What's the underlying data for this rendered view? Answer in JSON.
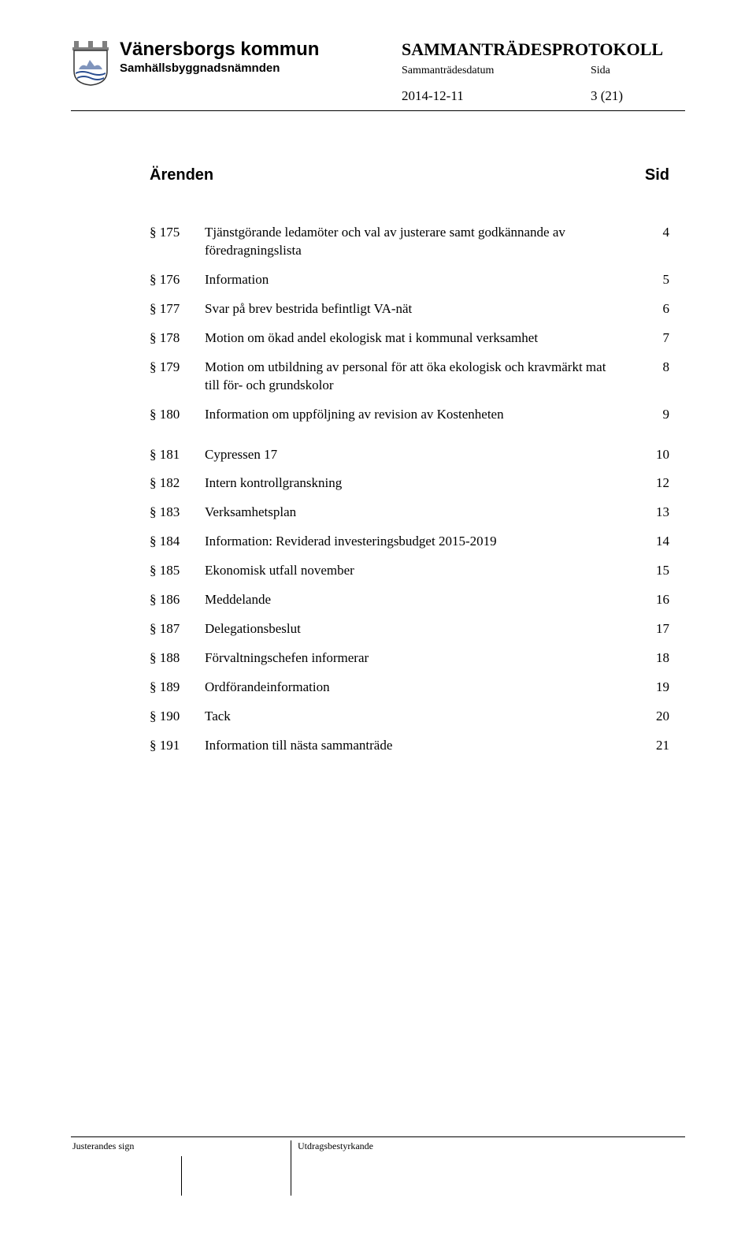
{
  "header": {
    "org_name": "Vänersborgs kommun",
    "committee": "Samhällsbyggnadsnämnden",
    "protocol_title": "SAMMANTRÄDESPROTOKOLL",
    "meta_date_label": "Sammanträdesdatum",
    "meta_side_label": "Sida",
    "date_value": "2014-12-11",
    "page_value": "3 (21)"
  },
  "toc": {
    "title": "Ärenden",
    "page_col": "Sid",
    "items": [
      {
        "num": "§ 175",
        "desc": "Tjänstgörande ledamöter och val av justerare samt godkännande av föredragningslista",
        "page": "4"
      },
      {
        "num": "§ 176",
        "desc": "Information",
        "page": "5"
      },
      {
        "num": "§ 177",
        "desc": "Svar på brev bestrida befintligt VA-nät",
        "page": "6"
      },
      {
        "num": "§ 178",
        "desc": "Motion om ökad andel ekologisk mat i kommunal verksamhet",
        "page": "7"
      },
      {
        "num": "§ 179",
        "desc": "Motion om utbildning av personal för att öka ekologisk och kravmärkt mat till för- och grundskolor",
        "page": "8"
      },
      {
        "num": "§ 180",
        "desc": "Information om uppföljning av revision av Kostenheten",
        "page": "9"
      },
      {
        "num": "§ 181",
        "desc": "Cypressen 17",
        "page": "10"
      },
      {
        "num": "§ 182",
        "desc": "Intern kontrollgranskning",
        "page": "12"
      },
      {
        "num": "§ 183",
        "desc": "Verksamhetsplan",
        "page": "13"
      },
      {
        "num": "§ 184",
        "desc": "Information: Reviderad investeringsbudget 2015-2019",
        "page": "14"
      },
      {
        "num": "§ 185",
        "desc": "Ekonomisk utfall november",
        "page": "15"
      },
      {
        "num": "§ 186",
        "desc": "Meddelande",
        "page": "16"
      },
      {
        "num": "§ 187",
        "desc": "Delegationsbeslut",
        "page": "17"
      },
      {
        "num": "§ 188",
        "desc": "Förvaltningschefen informerar",
        "page": "18"
      },
      {
        "num": "§ 189",
        "desc": "Ordförandeinformation",
        "page": "19"
      },
      {
        "num": "§ 190",
        "desc": "Tack",
        "page": "20"
      },
      {
        "num": "§ 191",
        "desc": "Information till nästa sammanträde",
        "page": "21"
      }
    ],
    "gap_after": [
      5
    ]
  },
  "footer": {
    "left_label": "Justerandes sign",
    "right_label": "Utdragsbestyrkande"
  },
  "style": {
    "text_color": "#000000",
    "bg_color": "#ffffff",
    "crest_blue": "#2a4d8f",
    "crest_yellow": "#f2c94c",
    "crest_outline": "#333333"
  }
}
